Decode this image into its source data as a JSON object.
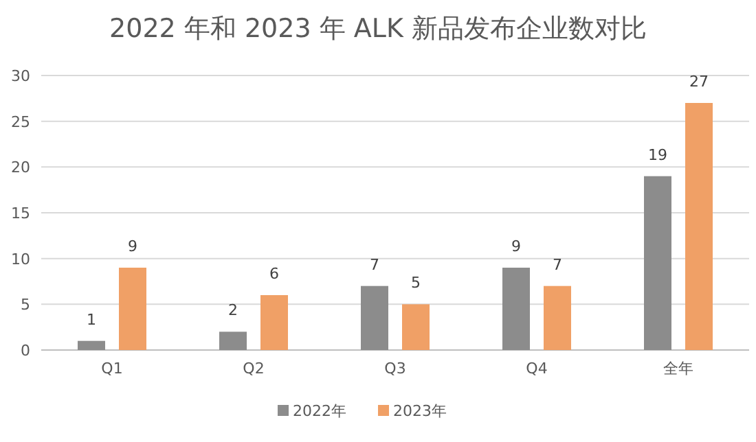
{
  "chart_data": {
    "type": "bar",
    "title": "2022 年和 2023 年 ALK 新品发布企业数对比",
    "categories": [
      "Q1",
      "Q2",
      "Q3",
      "Q4",
      "全年"
    ],
    "series": [
      {
        "name": "2022年",
        "color": "#8c8c8c",
        "values": [
          1,
          2,
          7,
          9,
          19
        ]
      },
      {
        "name": "2023年",
        "color": "#f0a066",
        "values": [
          9,
          6,
          5,
          7,
          27
        ]
      }
    ],
    "ylim": [
      0,
      30
    ],
    "yticks": [
      0,
      5,
      10,
      15,
      20,
      25,
      30
    ],
    "grid": "y",
    "legend": "bottom",
    "data_labels": true
  }
}
